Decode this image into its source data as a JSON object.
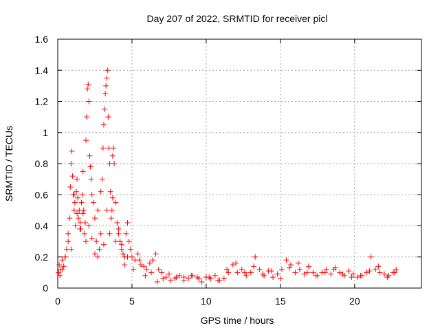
{
  "chart_data": {
    "type": "scatter",
    "title": "Day 207 of 2022, SRMTID for receiver picl",
    "xlabel": "GPS time / hours",
    "ylabel": "SRMTID / TECUs",
    "xlim": [
      0,
      24.5
    ],
    "ylim": [
      0,
      1.6
    ],
    "xticks": [
      0,
      5,
      10,
      15,
      20
    ],
    "yticks": [
      0,
      0.2,
      0.4,
      0.6,
      0.8,
      1,
      1.2,
      1.4,
      1.6
    ],
    "ytick_labels": [
      "0",
      "0.2",
      "0.4",
      "0.6",
      "0.8",
      "1",
      "1.2",
      "1.4",
      "1.6"
    ],
    "grid": true,
    "marker": "+",
    "series": [
      {
        "name": "SRMTID",
        "color": "#ff0000",
        "x": [
          0.05,
          0.1,
          0.15,
          0.2,
          0.3,
          0.4,
          0.5,
          0.6,
          0.7,
          0.8,
          0.85,
          0.9,
          0.95,
          1.0,
          1.05,
          1.1,
          1.15,
          1.2,
          1.25,
          1.3,
          1.35,
          1.4,
          1.45,
          1.5,
          1.55,
          1.6,
          1.65,
          1.7,
          1.75,
          1.8,
          1.85,
          1.9,
          1.95,
          2.0,
          2.05,
          2.1,
          2.15,
          2.2,
          2.25,
          2.3,
          2.4,
          2.5,
          2.6,
          2.7,
          2.8,
          2.9,
          3.0,
          3.05,
          3.1,
          3.15,
          3.2,
          3.25,
          3.3,
          3.35,
          3.4,
          3.45,
          3.5,
          3.55,
          3.6,
          3.65,
          3.7,
          3.75,
          3.8,
          3.9,
          4.0,
          4.1,
          4.2,
          4.3,
          4.4,
          4.5,
          4.6,
          4.7,
          4.8,
          4.9,
          5.0,
          5.2,
          5.4,
          5.6,
          5.8,
          6.0,
          6.2,
          6.4,
          6.6,
          6.8,
          7.0,
          7.3,
          7.6,
          7.9,
          8.2,
          8.5,
          8.8,
          9.1,
          9.4,
          9.7,
          10.0,
          10.3,
          10.6,
          10.9,
          11.2,
          11.5,
          11.8,
          12.1,
          12.4,
          12.7,
          13.0,
          13.3,
          13.6,
          13.9,
          14.2,
          14.5,
          14.8,
          15.1,
          15.4,
          15.7,
          16.0,
          16.3,
          16.6,
          16.9,
          17.2,
          17.5,
          17.8,
          18.1,
          18.4,
          18.7,
          19.0,
          19.3,
          19.6,
          19.9,
          20.2,
          20.5,
          20.8,
          21.1,
          21.4,
          21.7,
          22.0,
          22.3,
          22.6,
          22.8,
          0.3,
          0.5,
          0.7,
          0.9,
          1.1,
          1.3,
          1.5,
          1.7,
          1.9,
          2.1,
          2.3,
          2.5,
          2.7,
          2.9,
          3.1,
          3.3,
          3.5,
          3.7,
          3.9,
          4.1,
          4.3,
          4.5,
          4.7,
          5.1,
          5.5,
          5.9,
          6.3,
          6.7,
          7.1,
          7.5,
          8.0,
          8.5,
          9.0,
          9.5,
          10.2,
          10.8,
          11.4,
          12.0,
          12.6,
          13.2,
          13.8,
          14.4,
          15.0,
          15.6,
          16.2,
          16.8,
          17.4,
          18.0,
          18.6,
          19.2,
          19.8,
          20.4,
          21.0,
          21.6,
          22.2,
          22.7
        ],
        "y": [
          0.1,
          0.15,
          0.08,
          0.12,
          0.18,
          0.14,
          0.2,
          0.25,
          0.3,
          0.45,
          0.65,
          0.8,
          0.88,
          0.72,
          0.6,
          0.5,
          0.55,
          0.4,
          0.62,
          0.7,
          0.58,
          0.45,
          0.5,
          0.42,
          0.38,
          0.55,
          0.6,
          0.48,
          0.5,
          0.35,
          0.42,
          0.95,
          1.1,
          1.28,
          1.31,
          1.2,
          0.85,
          0.78,
          0.7,
          0.6,
          0.55,
          0.45,
          0.3,
          0.2,
          0.25,
          0.35,
          0.7,
          0.9,
          1.05,
          1.15,
          1.25,
          1.3,
          1.35,
          1.4,
          1.1,
          0.9,
          0.8,
          0.62,
          0.45,
          0.5,
          0.85,
          0.9,
          0.8,
          0.55,
          0.42,
          0.38,
          0.3,
          0.28,
          0.22,
          0.2,
          0.35,
          0.42,
          0.3,
          0.25,
          0.2,
          0.18,
          0.22,
          0.15,
          0.14,
          0.12,
          0.16,
          0.18,
          0.22,
          0.12,
          0.1,
          0.07,
          0.05,
          0.06,
          0.08,
          0.07,
          0.06,
          0.08,
          0.07,
          0.04,
          0.07,
          0.06,
          0.08,
          0.05,
          0.06,
          0.1,
          0.15,
          0.1,
          0.12,
          0.08,
          0.1,
          0.2,
          0.12,
          0.08,
          0.11,
          0.07,
          0.09,
          0.12,
          0.18,
          0.15,
          0.1,
          0.12,
          0.09,
          0.14,
          0.1,
          0.08,
          0.1,
          0.12,
          0.09,
          0.13,
          0.1,
          0.08,
          0.11,
          0.09,
          0.07,
          0.08,
          0.1,
          0.2,
          0.12,
          0.1,
          0.09,
          0.08,
          0.1,
          0.12,
          0.12,
          0.2,
          0.35,
          0.25,
          0.6,
          0.48,
          0.38,
          0.75,
          0.3,
          0.4,
          0.32,
          0.22,
          0.5,
          0.62,
          0.28,
          0.5,
          0.35,
          0.58,
          0.3,
          0.35,
          0.25,
          0.15,
          0.2,
          0.12,
          0.18,
          0.08,
          0.1,
          0.04,
          0.06,
          0.09,
          0.07,
          0.05,
          0.08,
          0.06,
          0.07,
          0.05,
          0.12,
          0.16,
          0.1,
          0.14,
          0.09,
          0.11,
          0.06,
          0.13,
          0.16,
          0.1,
          0.08,
          0.1,
          0.12,
          0.09,
          0.07,
          0.08,
          0.11,
          0.14,
          0.07,
          0.1
        ]
      }
    ]
  }
}
